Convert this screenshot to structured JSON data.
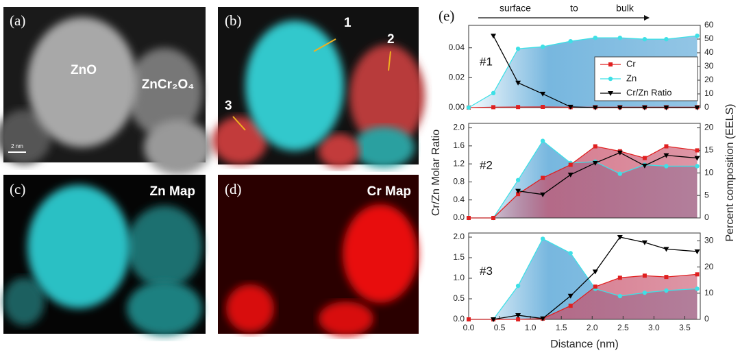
{
  "figure": {
    "panels": {
      "a": {
        "label": "(a)",
        "texts": [
          "ZnO",
          "ZnCr₂O₄"
        ],
        "scale_bar": "2 nm"
      },
      "b": {
        "label": "(b)",
        "markers": [
          "1",
          "2",
          "3"
        ]
      },
      "c": {
        "label": "(c)",
        "title": "Zn Map"
      },
      "d": {
        "label": "(d)",
        "title": "Cr Map"
      },
      "e": {
        "label": "(e)",
        "arrow_texts": [
          "surface",
          "to",
          "bulk"
        ]
      }
    },
    "y_label": "Cr/Zn Molar Ratio",
    "y2_label": "Percent composition (EELS)",
    "x_label": "Distance (nm)"
  },
  "chart_data": [
    {
      "type": "line",
      "label": "#1",
      "x": [
        0,
        0.4,
        0.8,
        1.2,
        1.65,
        2.05,
        2.45,
        2.85,
        3.2,
        3.7
      ],
      "xlim": [
        0,
        3.75
      ],
      "ylim": [
        0,
        0.055
      ],
      "yticks": [
        {
          "value": 0,
          "label": "0.00"
        },
        {
          "value": 0.02,
          "label": "0.02"
        },
        {
          "value": 0.04,
          "label": "0.04"
        }
      ],
      "y2lim": [
        0,
        60
      ],
      "y2ticks": [
        0,
        10,
        20,
        30,
        40,
        50,
        60
      ],
      "legend": "upper right",
      "series": [
        {
          "name": "Cr",
          "color": "#e02020",
          "fill_color": "#c8506a",
          "marker": "square",
          "axis": "y2",
          "values": [
            0,
            0.3,
            0.4,
            0.5,
            0.3,
            0.3,
            0.3,
            0.3,
            0.3,
            0.3
          ]
        },
        {
          "name": "Zn",
          "color": "#3ee0e6",
          "fill_color": "#4a9fd4",
          "marker": "circle",
          "axis": "y2",
          "values": [
            0,
            10.6,
            42.9,
            44.4,
            48.4,
            50.9,
            50.9,
            49.9,
            49.9,
            52.4
          ]
        },
        {
          "name": "Cr/Zn Ratio",
          "color": "#000000",
          "marker": "triangle",
          "axis": "y",
          "values": [
            null,
            0.048,
            0.0166,
            0.0092,
            0.0005,
            0,
            0,
            0,
            0,
            0
          ]
        }
      ]
    },
    {
      "type": "line",
      "label": "#2",
      "x": [
        0,
        0.4,
        0.8,
        1.2,
        1.65,
        2.05,
        2.45,
        2.85,
        3.2,
        3.7
      ],
      "xlim": [
        0,
        3.75
      ],
      "ylim": [
        0,
        2.1
      ],
      "yticks": [
        {
          "value": 0,
          "label": "0.0"
        },
        0.4,
        0.8,
        1.2,
        1.6,
        {
          "value": 2,
          "label": "2.0"
        }
      ],
      "y2lim": [
        0,
        21
      ],
      "y2ticks": [
        0,
        5,
        10,
        15,
        20
      ],
      "series": [
        {
          "color": "#3ee0e6",
          "fill_color": "#4a9fd4",
          "marker": "circle",
          "axis": "y2",
          "values": [
            0,
            0,
            8.4,
            17.1,
            12.2,
            12.5,
            9.8,
            11.8,
            11.5,
            11.5
          ]
        },
        {
          "color": "#e02020",
          "fill_color": "#c8506a",
          "marker": "square",
          "axis": "y2",
          "values": [
            0,
            0,
            5.3,
            8.9,
            11.8,
            15.9,
            14.8,
            13.3,
            15.9,
            15
          ]
        },
        {
          "color": "#000000",
          "marker": "triangle",
          "axis": "y",
          "values": [
            null,
            null,
            0.6,
            0.52,
            0.96,
            1.22,
            1.45,
            1.16,
            1.39,
            1.33
          ]
        }
      ]
    },
    {
      "type": "line",
      "label": "#3",
      "x": [
        0,
        0.4,
        0.8,
        1.2,
        1.65,
        2.05,
        2.45,
        2.85,
        3.2,
        3.7
      ],
      "xlim": [
        0,
        3.75
      ],
      "xticks": [
        {
          "value": 0,
          "label": "0.0"
        },
        0.5,
        {
          "value": 1,
          "label": "1.0"
        },
        1.5,
        {
          "value": 2,
          "label": "2.0"
        },
        2.5,
        {
          "value": 3,
          "label": "3.0"
        },
        3.5
      ],
      "ylim": [
        0,
        2.1
      ],
      "yticks": [
        {
          "value": 0,
          "label": "0.0"
        },
        0.5,
        {
          "value": 1,
          "label": "1.0"
        },
        1.5,
        {
          "value": 2,
          "label": "2.0"
        }
      ],
      "y2lim": [
        0,
        33
      ],
      "y2ticks": [
        0,
        10,
        20,
        30
      ],
      "series": [
        {
          "color": "#3ee0e6",
          "fill_color": "#4a9fd4",
          "marker": "circle",
          "axis": "y2",
          "values": [
            0,
            0,
            12.8,
            30.8,
            25.3,
            11.7,
            8.9,
            10.2,
            11,
            11.7
          ]
        },
        {
          "color": "#e02020",
          "fill_color": "#c8506a",
          "marker": "square",
          "axis": "y2",
          "values": [
            0,
            0,
            0,
            0.3,
            5.2,
            12.5,
            15.9,
            16.7,
            16.2,
            17.2
          ]
        },
        {
          "color": "#000000",
          "marker": "triangle",
          "axis": "y",
          "values": [
            null,
            0,
            0.1,
            0.02,
            0.57,
            1.16,
            2,
            1.87,
            1.71,
            1.65
          ]
        }
      ]
    }
  ]
}
